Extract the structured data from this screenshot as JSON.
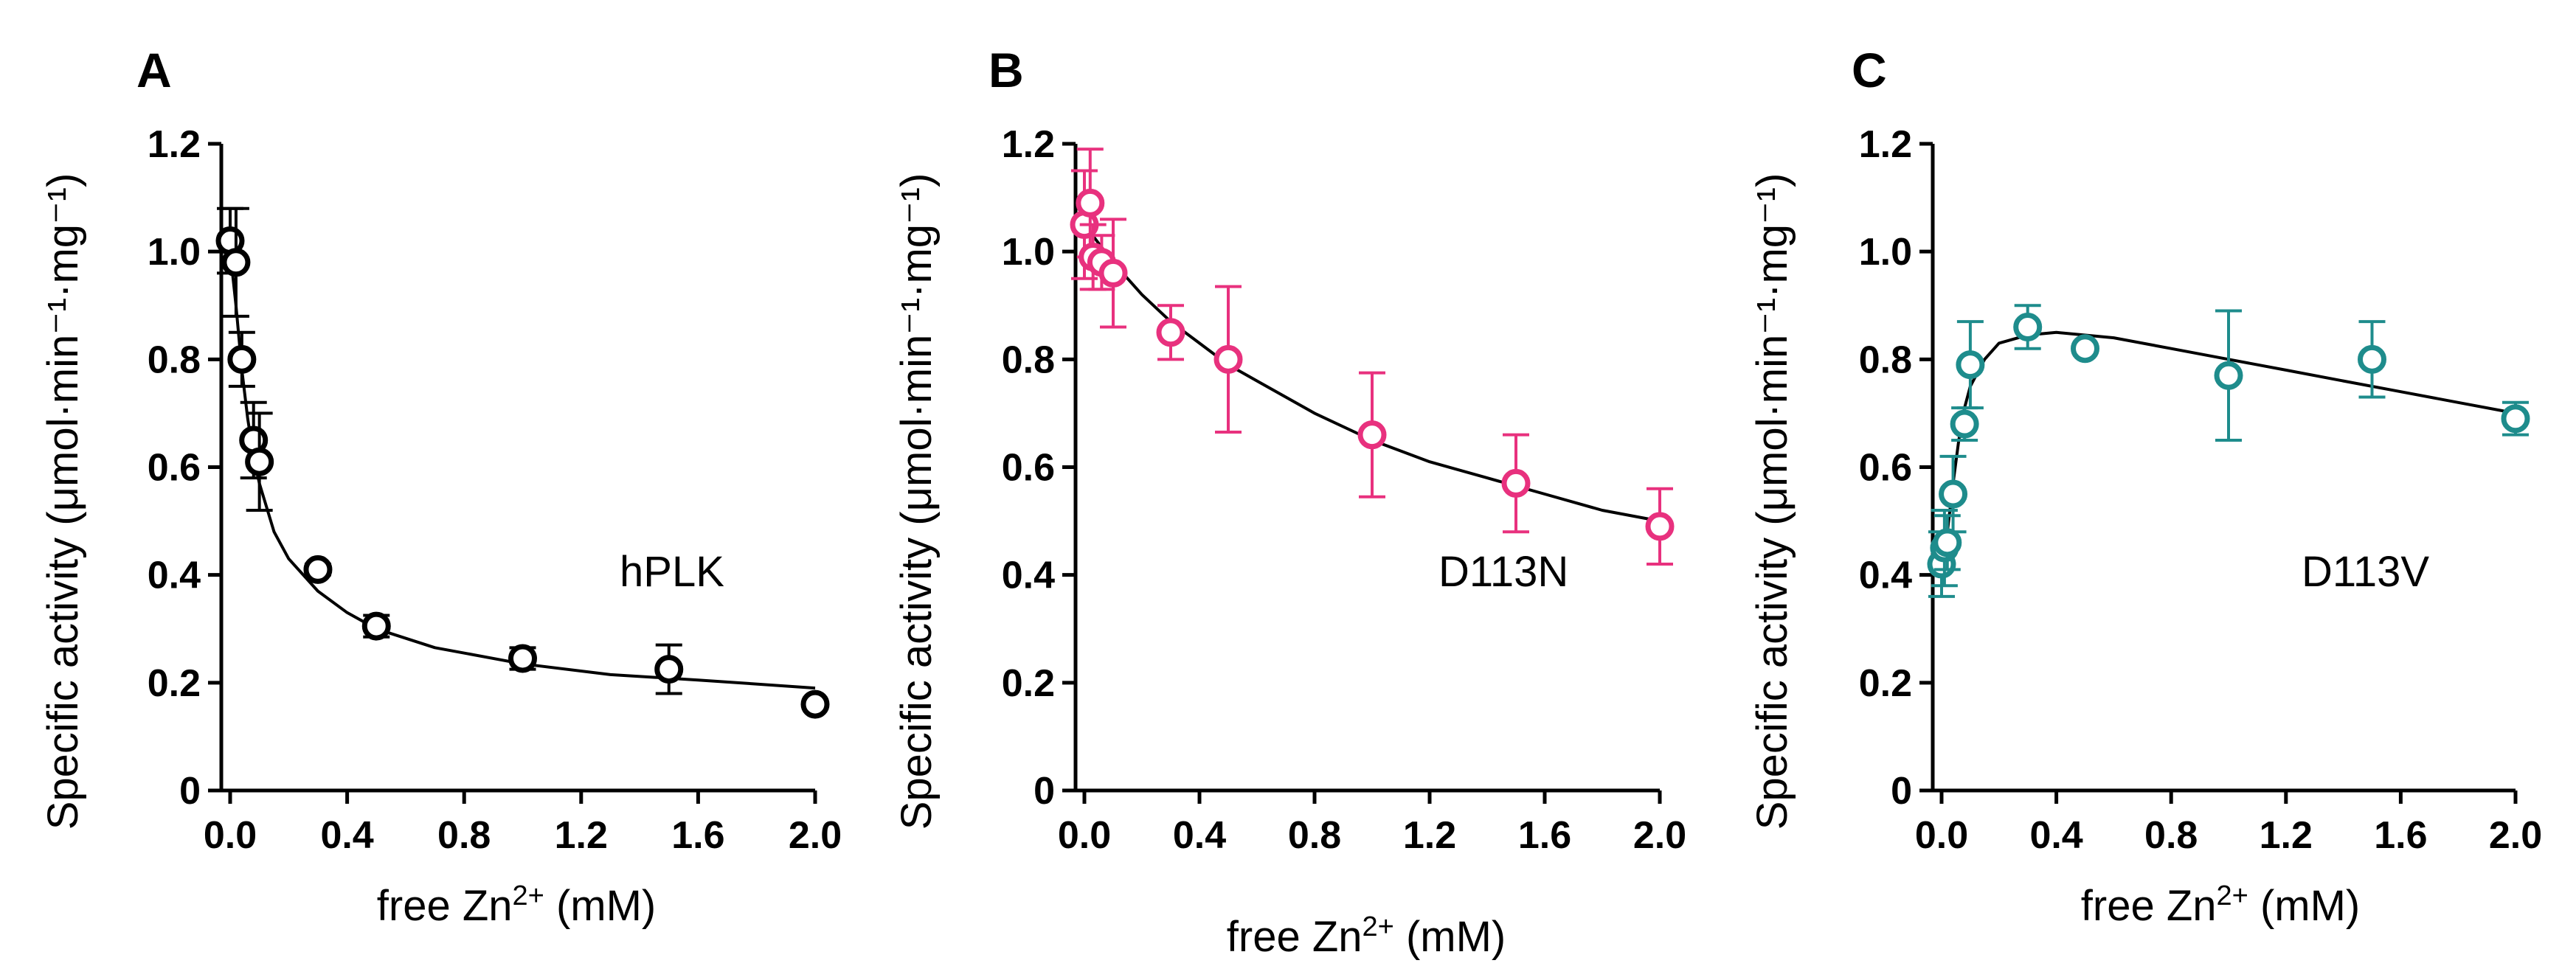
{
  "chart_data": [
    {
      "type": "scatter",
      "panel_letter": "A",
      "variant_label": "hPLK",
      "color": "#000000",
      "xlabel": {
        "prefix": "free Zn",
        "sup": "2+",
        "suffix": " (mM)"
      },
      "ylabel": "Specific activity (μmol·min⁻¹·mg⁻¹)",
      "xlim": [
        0,
        2.0
      ],
      "ylim": [
        0,
        1.2
      ],
      "xticks": [
        "0.0",
        "0.4",
        "0.8",
        "1.2",
        "1.6",
        "2.0"
      ],
      "yticks": [
        "0",
        "0.2",
        "0.4",
        "0.6",
        "0.8",
        "1.0",
        "1.2"
      ],
      "points": [
        {
          "x": 0.0,
          "y": 1.02,
          "err": 0.06
        },
        {
          "x": 0.02,
          "y": 0.98,
          "err": 0.1
        },
        {
          "x": 0.04,
          "y": 0.8,
          "err": 0.05
        },
        {
          "x": 0.08,
          "y": 0.65,
          "err": 0.07
        },
        {
          "x": 0.1,
          "y": 0.61,
          "err": 0.09
        },
        {
          "x": 0.3,
          "y": 0.41,
          "err": 0.01
        },
        {
          "x": 0.5,
          "y": 0.305,
          "err": 0.02
        },
        {
          "x": 1.0,
          "y": 0.245,
          "err": 0.02
        },
        {
          "x": 1.5,
          "y": 0.225,
          "err": 0.045
        },
        {
          "x": 2.0,
          "y": 0.16,
          "err": 0.0
        }
      ],
      "fit_curve": {
        "x": [
          0,
          0.02,
          0.04,
          0.06,
          0.08,
          0.1,
          0.15,
          0.2,
          0.3,
          0.4,
          0.5,
          0.7,
          1.0,
          1.3,
          1.6,
          2.0
        ],
        "y": [
          1.0,
          0.9,
          0.78,
          0.69,
          0.62,
          0.57,
          0.48,
          0.43,
          0.37,
          0.33,
          0.3,
          0.265,
          0.235,
          0.215,
          0.205,
          0.19
        ]
      }
    },
    {
      "type": "scatter",
      "panel_letter": "B",
      "variant_label": "D113N",
      "color": "#e8317e",
      "xlabel": {
        "prefix": "free Zn",
        "sup": "2+",
        "suffix": " (mM)"
      },
      "ylabel": "Specific activity (μmol·min⁻¹·mg⁻¹)",
      "xlim": [
        0,
        2.0
      ],
      "ylim": [
        0,
        1.2
      ],
      "xticks": [
        "0.0",
        "0.4",
        "0.8",
        "1.2",
        "1.6",
        "2.0"
      ],
      "yticks": [
        "0",
        "0.2",
        "0.4",
        "0.6",
        "0.8",
        "1.0",
        "1.2"
      ],
      "points": [
        {
          "x": 0.0,
          "y": 1.05,
          "err": 0.1
        },
        {
          "x": 0.02,
          "y": 1.09,
          "err": 0.1
        },
        {
          "x": 0.03,
          "y": 0.99,
          "err": 0.06
        },
        {
          "x": 0.06,
          "y": 0.98,
          "err": 0.05
        },
        {
          "x": 0.1,
          "y": 0.96,
          "err": 0.1
        },
        {
          "x": 0.3,
          "y": 0.85,
          "err": 0.05
        },
        {
          "x": 0.5,
          "y": 0.8,
          "err": 0.135
        },
        {
          "x": 1.0,
          "y": 0.66,
          "err": 0.115
        },
        {
          "x": 1.5,
          "y": 0.57,
          "err": 0.09
        },
        {
          "x": 2.0,
          "y": 0.49,
          "err": 0.07
        }
      ],
      "fit_curve": {
        "x": [
          0,
          0.1,
          0.2,
          0.3,
          0.4,
          0.5,
          0.6,
          0.8,
          1.0,
          1.2,
          1.4,
          1.6,
          1.8,
          2.0
        ],
        "y": [
          1.05,
          0.98,
          0.92,
          0.87,
          0.83,
          0.79,
          0.76,
          0.7,
          0.65,
          0.61,
          0.58,
          0.55,
          0.52,
          0.5
        ]
      }
    },
    {
      "type": "scatter",
      "panel_letter": "C",
      "variant_label": "D113V",
      "color": "#1e8c8c",
      "xlabel": {
        "prefix": "free Zn",
        "sup": "2+",
        "suffix": " (mM)"
      },
      "ylabel": "Specific activity (μmol·min⁻¹·mg⁻¹)",
      "xlim": [
        0,
        2.0
      ],
      "ylim": [
        0,
        1.2
      ],
      "xticks": [
        "0.0",
        "0.4",
        "0.8",
        "1.2",
        "1.6",
        "2.0"
      ],
      "yticks": [
        "0",
        "0.2",
        "0.4",
        "0.6",
        "0.8",
        "1.0",
        "1.2"
      ],
      "points": [
        {
          "x": 0.0,
          "y": 0.42,
          "err": 0.06
        },
        {
          "x": 0.01,
          "y": 0.45,
          "err": 0.07
        },
        {
          "x": 0.02,
          "y": 0.46,
          "err": 0.05
        },
        {
          "x": 0.04,
          "y": 0.55,
          "err": 0.07
        },
        {
          "x": 0.08,
          "y": 0.68,
          "err": 0.03
        },
        {
          "x": 0.1,
          "y": 0.79,
          "err": 0.08
        },
        {
          "x": 0.3,
          "y": 0.86,
          "err": 0.04
        },
        {
          "x": 0.5,
          "y": 0.82,
          "err": 0.0
        },
        {
          "x": 1.0,
          "y": 0.77,
          "err": 0.12
        },
        {
          "x": 1.5,
          "y": 0.8,
          "err": 0.07
        },
        {
          "x": 2.0,
          "y": 0.69,
          "err": 0.03
        }
      ],
      "fit_curve": {
        "x": [
          0,
          0.02,
          0.04,
          0.06,
          0.08,
          0.1,
          0.15,
          0.2,
          0.3,
          0.4,
          0.6,
          0.8,
          1.0,
          1.2,
          1.4,
          1.6,
          1.8,
          2.0
        ],
        "y": [
          0.4,
          0.48,
          0.57,
          0.65,
          0.71,
          0.75,
          0.8,
          0.83,
          0.845,
          0.85,
          0.84,
          0.82,
          0.8,
          0.78,
          0.76,
          0.74,
          0.72,
          0.7
        ]
      }
    }
  ]
}
